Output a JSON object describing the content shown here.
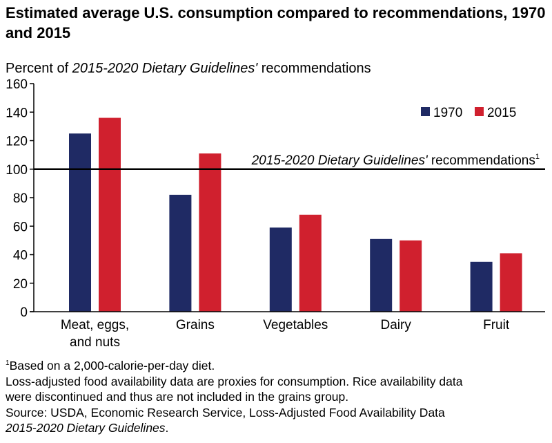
{
  "chart_data": {
    "type": "bar",
    "title": "Estimated average U.S. consumption compared to recommendations, 1970 and 2015",
    "ylabel_prefix": "Percent of ",
    "ylabel_italic": "2015-2020 Dietary Guidelines'",
    "ylabel_suffix": " recommendations",
    "categories": [
      "Meat, eggs,\nand nuts",
      "Grains",
      "Vegetables",
      "Dairy",
      "Fruit"
    ],
    "series": [
      {
        "name": "1970",
        "color": "#1f2a64",
        "values": [
          125,
          82,
          59,
          51,
          35
        ]
      },
      {
        "name": "2015",
        "color": "#d0202e",
        "values": [
          136,
          111,
          68,
          50,
          41
        ]
      }
    ],
    "ylim": [
      0,
      160
    ],
    "yticks": [
      0,
      20,
      40,
      60,
      80,
      100,
      120,
      140,
      160
    ],
    "reference_line": {
      "value": 100,
      "label_italic": "2015-2020 Dietary Guidelines'",
      "label_suffix": " recommendations",
      "label_sup": "1"
    },
    "legend_position": "top-right"
  },
  "notes": {
    "footnote_sup": "1",
    "footnote": "Based on a 2,000-calorie-per-day diet.",
    "line2": "Loss-adjusted food availability data are proxies for consumption. Rice availability data",
    "line3": "were discontinued and thus are not included in the grains group.",
    "line4": "Source: USDA, Economic Research Service, Loss-Adjusted Food Availability Data",
    "line5_italic": "2015-2020 Dietary Guidelines",
    "line5_suffix": "."
  }
}
